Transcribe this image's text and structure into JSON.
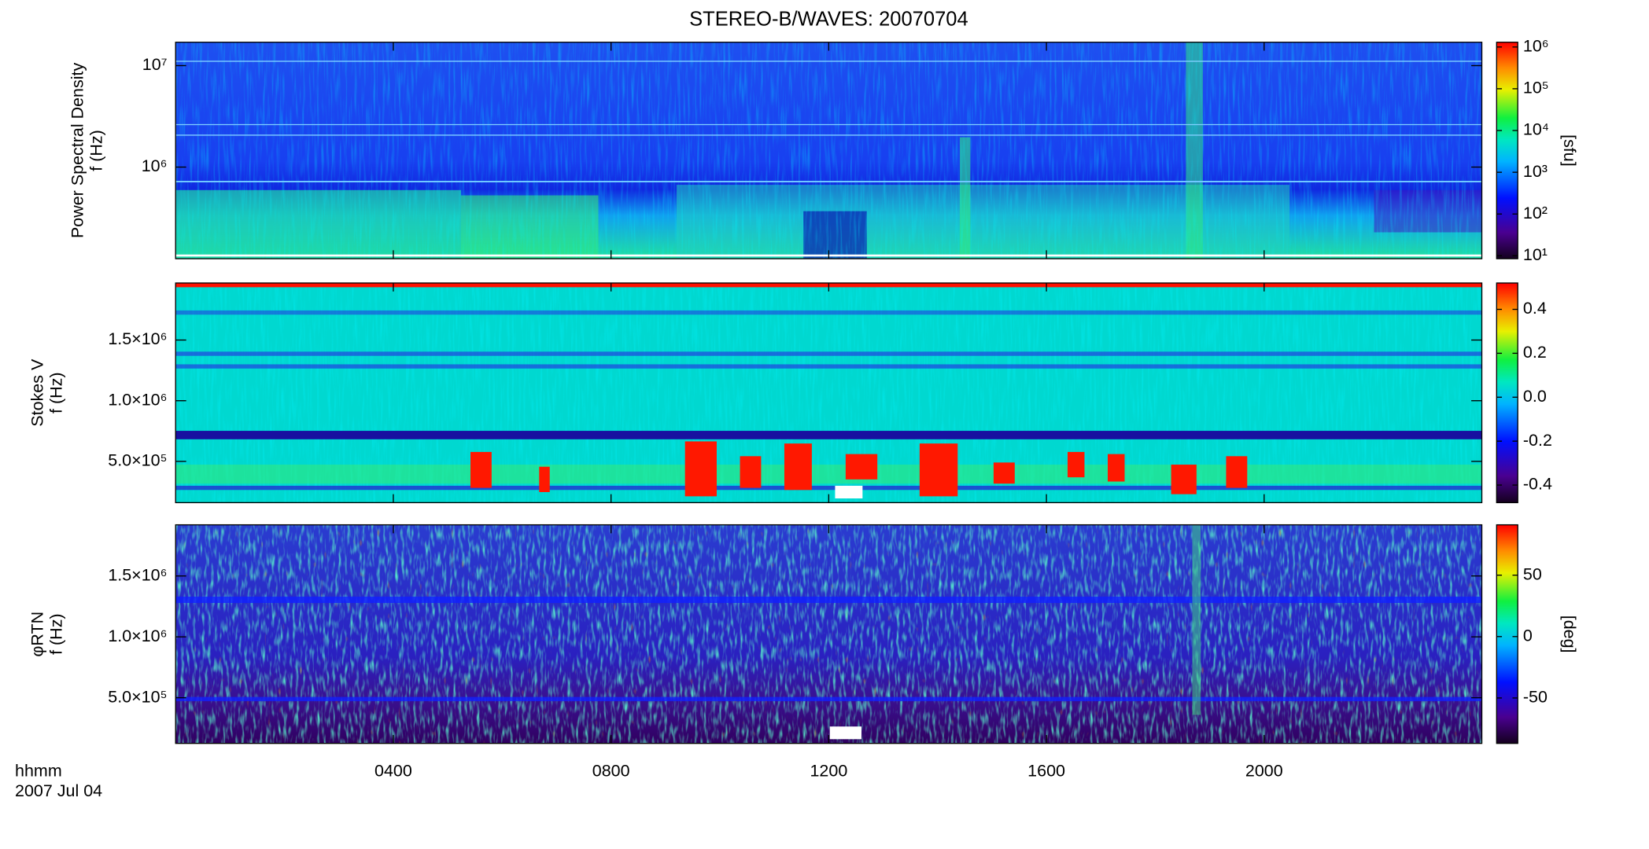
{
  "chart_data": [
    {
      "type": "spectrogram",
      "title": "STEREO-B/WAVES: 20070704",
      "ylabel": [
        "Power Spectral Density",
        "f (Hz)"
      ],
      "ylog": true,
      "ylim": [
        125000,
        17000000
      ],
      "yticks": [
        {
          "value": 1000000,
          "label": "10⁶"
        },
        {
          "value": 10000000,
          "label": "10⁷"
        }
      ],
      "colorbar": {
        "label": "[sfu]",
        "log": true,
        "zlim": [
          8.5,
          1300000
        ],
        "zticks": [
          {
            "value": 10,
            "label": "10¹"
          },
          {
            "value": 100,
            "label": "10²"
          },
          {
            "value": 1000,
            "label": "10³"
          },
          {
            "value": 10000,
            "label": "10⁴"
          },
          {
            "value": 100000,
            "label": "10⁵"
          },
          {
            "value": 1000000,
            "label": "10⁶"
          }
        ]
      }
    },
    {
      "type": "spectrogram",
      "ylabel": [
        "Stokes V",
        "f (Hz)"
      ],
      "ylog": false,
      "ylim": [
        160000,
        1970000
      ],
      "yticks": [
        {
          "value": 500000,
          "label": "5.0×10⁵"
        },
        {
          "value": 1000000,
          "label": "1.0×10⁶"
        },
        {
          "value": 1500000,
          "label": "1.5×10⁶"
        }
      ],
      "colorbar": {
        "log": false,
        "zlim": [
          -0.48,
          0.52
        ],
        "zticks": [
          -0.4,
          -0.2,
          {
            "value": 0,
            "label": "0.0"
          },
          0.2,
          0.4
        ]
      }
    },
    {
      "type": "spectrogram",
      "ylabel": [
        "φRTN",
        "f (Hz)"
      ],
      "ylog": false,
      "ylim": [
        125000,
        1920000
      ],
      "yticks": [
        {
          "value": 500000,
          "label": "5.0×10⁵"
        },
        {
          "value": 1000000,
          "label": "1.0×10⁶"
        },
        {
          "value": 1500000,
          "label": "1.5×10⁶"
        }
      ],
      "colorbar": {
        "label": "[deg]",
        "log": false,
        "zlim": [
          -87,
          91
        ],
        "zticks": [
          -50,
          0,
          50
        ]
      },
      "xlabel": "hhmm",
      "date": "2007 Jul 04",
      "xlim": [
        0,
        24
      ],
      "xticks": [
        {
          "value": 4,
          "label": "0400"
        },
        {
          "value": 8,
          "label": "0800"
        },
        {
          "value": 12,
          "label": "1200"
        },
        {
          "value": 16,
          "label": "1600"
        },
        {
          "value": 20,
          "label": "2000"
        }
      ]
    }
  ]
}
